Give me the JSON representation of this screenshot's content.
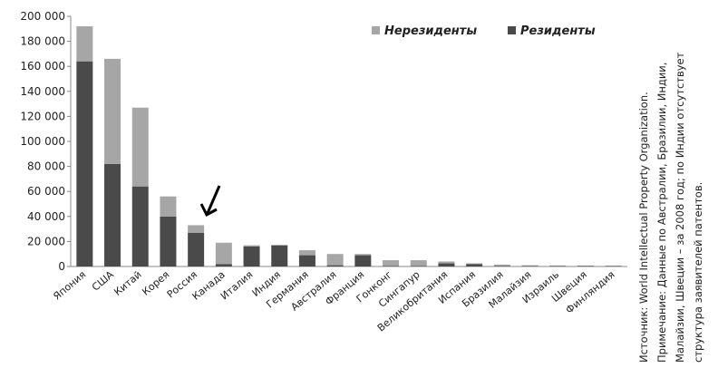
{
  "chart_data": {
    "type": "stacked_bar",
    "categories": [
      "Япония",
      "США",
      "Китай",
      "Корея",
      "Россия",
      "Канада",
      "Италия",
      "Индия",
      "Германия",
      "Австралия",
      "Франция",
      "Гонконг",
      "Сингапур",
      "Великобритания",
      "Испания",
      "Бразилия",
      "Малайзия",
      "Израиль",
      "Швеция",
      "Финляндия"
    ],
    "series": [
      {
        "name": "Резиденты",
        "color": "#4a4a4a",
        "values": [
          164000,
          82000,
          64000,
          40000,
          27000,
          2000,
          16000,
          17000,
          9000,
          1000,
          9000,
          500,
          500,
          2500,
          2000,
          500,
          300,
          300,
          500,
          400
        ]
      },
      {
        "name": "Нерезиденты",
        "color": "#a6a6a6",
        "values": [
          28000,
          84000,
          63000,
          16000,
          6000,
          17000,
          1000,
          0,
          4000,
          9000,
          1000,
          4500,
          4500,
          1500,
          500,
          1000,
          700,
          500,
          200,
          200
        ]
      }
    ],
    "ylim": [
      0,
      200000
    ],
    "yticks": [
      0,
      {
        "value": 20000,
        "label": "20 000"
      },
      {
        "value": 40000,
        "label": "40 000"
      },
      {
        "value": 60000,
        "label": "60 000"
      },
      {
        "value": 80000,
        "label": "80 000"
      },
      {
        "value": 100000,
        "label": "100 000"
      },
      {
        "value": 120000,
        "label": "120 000"
      },
      {
        "value": 140000,
        "label": "140 000"
      },
      {
        "value": 160000,
        "label": "160 000"
      },
      {
        "value": 180000,
        "label": "180 000"
      },
      {
        "value": 200000,
        "label": "200 000"
      }
    ],
    "legend": "top-right",
    "notes": [
      "Источник: World Intellectual Property Organization.",
      "Примечание: Данные по Австралии, Бразилии, Индии,",
      "Малайзии, Швеции – за 2008 год; по Индии отсутствует",
      "структура заявителей патентов."
    ]
  }
}
